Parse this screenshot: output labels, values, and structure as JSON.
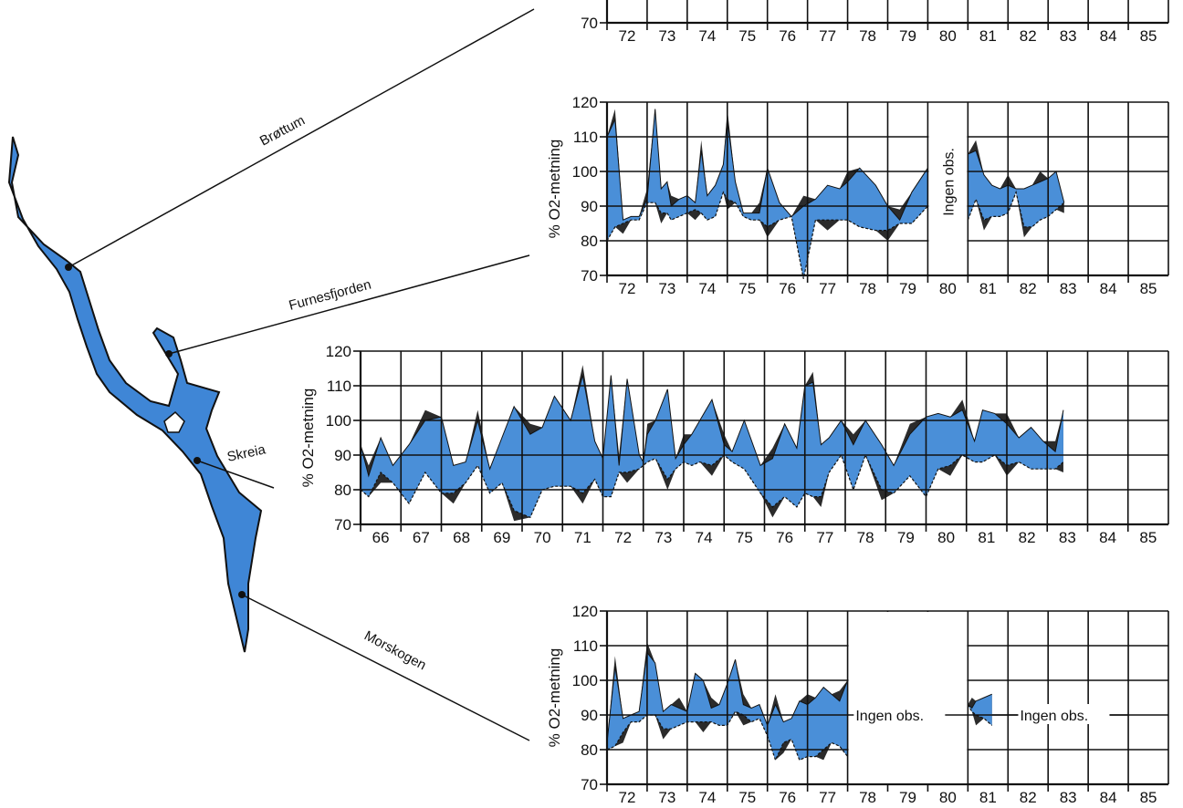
{
  "colors": {
    "band": "#4a8fd8",
    "excess": "#2b2b2b",
    "lake": "#3f86d6",
    "grid": "#111111"
  },
  "map": {
    "places": [
      "Brøttum",
      "Furnesfjorden",
      "Skreia",
      "Morskogen"
    ]
  },
  "chart_data": [
    {
      "station": "top",
      "type": "area",
      "xlabel": "",
      "ylabel": "",
      "xlim": [
        72,
        86
      ],
      "ylim": [
        70,
        120
      ],
      "x_ticks": [
        "72",
        "73",
        "74",
        "75",
        "76",
        "77",
        "78",
        "79",
        "80",
        "81",
        "82",
        "83",
        "84",
        "85"
      ],
      "y_ticks": [
        70
      ],
      "note": ""
    },
    {
      "station": "Brøttum",
      "type": "area",
      "xlabel": "",
      "ylabel": "% O2-metning",
      "xlim": [
        72,
        86
      ],
      "ylim": [
        70,
        120
      ],
      "grid": true,
      "x_ticks": [
        "72",
        "73",
        "74",
        "75",
        "76",
        "77",
        "78",
        "79",
        "80",
        "81",
        "82",
        "83",
        "84",
        "85"
      ],
      "y_ticks": [
        70,
        80,
        90,
        100,
        110,
        120
      ],
      "note": "Ingen obs.",
      "series": [
        {
          "name": "upper",
          "x": [
            72.0,
            72.2,
            72.4,
            72.6,
            72.8,
            73.0,
            73.2,
            73.35,
            73.5,
            73.6,
            73.8,
            74.0,
            74.2,
            74.35,
            74.5,
            74.7,
            74.9,
            75.0,
            75.2,
            75.4,
            75.6,
            75.8,
            76.0,
            76.3,
            76.6,
            76.9,
            77.2,
            77.5,
            77.8,
            78.0,
            78.3,
            78.7,
            79.0,
            79.3,
            79.6,
            80.0
          ],
          "values": [
            110,
            115,
            86,
            87,
            87,
            92,
            118,
            95,
            97,
            90,
            92,
            93,
            91,
            106,
            93,
            96,
            102,
            115,
            97,
            88,
            88,
            88,
            101,
            91,
            87,
            90,
            92,
            96,
            95,
            97,
            101,
            96,
            90,
            86,
            94,
            101
          ]
        },
        {
          "name": "lower",
          "x": [
            72.0,
            72.2,
            72.4,
            72.6,
            72.8,
            73.0,
            73.2,
            73.35,
            73.5,
            73.6,
            73.8,
            74.0,
            74.2,
            74.35,
            74.5,
            74.7,
            74.9,
            75.0,
            75.2,
            75.4,
            75.6,
            75.8,
            76.0,
            76.3,
            76.6,
            76.9,
            77.2,
            77.5,
            77.8,
            78.0,
            78.3,
            78.7,
            79.0,
            79.3,
            79.6,
            80.0
          ],
          "values": [
            80,
            84,
            85,
            86,
            86,
            91,
            91,
            88,
            88,
            86,
            87,
            88,
            89,
            88,
            86,
            87,
            94,
            92,
            91,
            87,
            86,
            86,
            84,
            86,
            87,
            69,
            86,
            86,
            86,
            86,
            84,
            83,
            83,
            85,
            85,
            90
          ]
        },
        {
          "name": "upper",
          "x": [
            81.0,
            81.2,
            81.4,
            81.6,
            81.8,
            82.0,
            82.2,
            82.4,
            82.6,
            82.8,
            83.0,
            83.2,
            83.4
          ],
          "values": [
            105,
            106,
            99,
            96,
            95,
            96,
            95,
            95,
            96,
            97,
            98,
            100,
            91
          ]
        },
        {
          "name": "lower",
          "x": [
            81.0,
            81.2,
            81.4,
            81.6,
            81.8,
            82.0,
            82.2,
            82.4,
            82.6,
            82.8,
            83.0,
            83.2,
            83.4
          ],
          "values": [
            86,
            92,
            86,
            87,
            87,
            88,
            94,
            84,
            84,
            86,
            87,
            89,
            91
          ]
        }
      ]
    },
    {
      "station": "Skreia",
      "type": "area",
      "xlabel": "",
      "ylabel": "% O2-metning",
      "xlim": [
        66,
        86
      ],
      "ylim": [
        70,
        120
      ],
      "grid": true,
      "x_ticks": [
        "66",
        "67",
        "68",
        "69",
        "70",
        "71",
        "72",
        "73",
        "74",
        "75",
        "76",
        "77",
        "78",
        "79",
        "80",
        "81",
        "82",
        "83",
        "84",
        "85"
      ],
      "y_ticks": [
        70,
        80,
        90,
        100,
        110,
        120
      ],
      "note": "",
      "series": [
        {
          "name": "upper",
          "x": [
            66.0,
            66.2,
            66.5,
            66.8,
            67.2,
            67.6,
            68.0,
            68.3,
            68.6,
            68.9,
            69.2,
            69.5,
            69.8,
            70.2,
            70.5,
            70.8,
            71.2,
            71.5,
            71.8,
            72.0,
            72.2,
            72.4,
            72.6,
            72.9,
            73.0,
            73.1,
            73.3,
            73.6,
            73.8,
            74.0,
            74.2,
            74.4,
            74.7,
            75.0,
            75.2,
            75.5,
            75.9,
            76.2,
            76.5,
            76.8,
            77.0,
            77.2,
            77.4,
            77.6,
            77.9,
            78.2,
            78.5,
            78.9,
            79.2,
            79.6,
            80.0,
            80.3,
            80.6,
            80.9,
            81.2,
            81.4,
            81.7,
            82.0,
            82.3,
            82.6,
            82.9,
            83.2,
            83.4
          ],
          "values": [
            93,
            84,
            95,
            87,
            93,
            100,
            101,
            87,
            88,
            100,
            86,
            95,
            104,
            96,
            98,
            107,
            100,
            113,
            94,
            89,
            113,
            87,
            112,
            90,
            88,
            96,
            100,
            109,
            89,
            93,
            96,
            100,
            106,
            93,
            91,
            100,
            87,
            89,
            99,
            92,
            110,
            111,
            93,
            95,
            100,
            93,
            100,
            93,
            87,
            96,
            101,
            102,
            101,
            103,
            94,
            103,
            102,
            99,
            95,
            98,
            94,
            91,
            103
          ]
        },
        {
          "name": "lower",
          "x": [
            66.0,
            66.2,
            66.5,
            66.8,
            67.2,
            67.6,
            68.0,
            68.3,
            68.6,
            68.9,
            69.2,
            69.5,
            69.8,
            70.2,
            70.5,
            70.8,
            71.2,
            71.5,
            71.8,
            72.0,
            72.2,
            72.4,
            72.6,
            72.9,
            73.0,
            73.1,
            73.3,
            73.6,
            73.8,
            74.0,
            74.2,
            74.4,
            74.7,
            75.0,
            75.2,
            75.5,
            75.9,
            76.2,
            76.5,
            76.8,
            77.0,
            77.2,
            77.4,
            77.6,
            77.9,
            78.2,
            78.5,
            78.9,
            79.2,
            79.6,
            80.0,
            80.3,
            80.6,
            80.9,
            81.2,
            81.4,
            81.7,
            82.0,
            82.3,
            82.6,
            82.9,
            83.2,
            83.4
          ],
          "values": [
            80,
            78,
            85,
            82,
            76,
            85,
            79,
            79,
            82,
            87,
            79,
            82,
            74,
            72,
            80,
            81,
            81,
            79,
            83,
            78,
            78,
            85,
            85,
            86,
            87,
            88,
            89,
            83,
            86,
            88,
            87,
            88,
            87,
            90,
            88,
            86,
            79,
            75,
            78,
            75,
            79,
            78,
            78,
            85,
            90,
            80,
            90,
            80,
            79,
            84,
            78,
            86,
            87,
            90,
            88,
            88,
            90,
            87,
            88,
            86,
            86,
            86,
            88
          ]
        }
      ]
    },
    {
      "station": "Morskogen",
      "type": "area",
      "xlabel": "",
      "ylabel": "% O2-metning",
      "xlim": [
        72,
        86
      ],
      "ylim": [
        70,
        120
      ],
      "grid": true,
      "x_ticks": [
        "72",
        "73",
        "74",
        "75",
        "76",
        "77",
        "78",
        "79",
        "80",
        "81",
        "82",
        "83",
        "84",
        "85"
      ],
      "y_ticks": [
        70,
        80,
        90,
        100,
        110,
        120
      ],
      "notes": [
        "Ingen obs.",
        "Ingen obs."
      ],
      "series": [
        {
          "name": "upper",
          "x": [
            72.0,
            72.2,
            72.4,
            72.6,
            72.8,
            73.0,
            73.2,
            73.4,
            73.6,
            73.8,
            74.0,
            74.2,
            74.4,
            74.6,
            74.8,
            75.0,
            75.2,
            75.4,
            75.6,
            75.8,
            76.0,
            76.2,
            76.4,
            76.6,
            76.8,
            77.0,
            77.2,
            77.4,
            77.6,
            77.8,
            78.0
          ],
          "values": [
            82,
            104,
            89,
            90,
            91,
            108,
            105,
            91,
            93,
            92,
            91,
            102,
            100,
            92,
            93,
            99,
            106,
            93,
            92,
            93,
            87,
            93,
            88,
            89,
            94,
            93,
            95,
            98,
            96,
            94,
            100
          ]
        },
        {
          "name": "lower",
          "x": [
            72.0,
            72.2,
            72.4,
            72.6,
            72.8,
            73.0,
            73.2,
            73.4,
            73.6,
            73.8,
            74.0,
            74.2,
            74.4,
            74.6,
            74.8,
            75.0,
            75.2,
            75.4,
            75.6,
            75.8,
            76.0,
            76.2,
            76.4,
            76.6,
            76.8,
            77.0,
            77.2,
            77.4,
            77.6,
            77.8,
            78.0
          ],
          "values": [
            80,
            81,
            85,
            88,
            88,
            90,
            90,
            86,
            86,
            87,
            88,
            88,
            88,
            88,
            87,
            87,
            91,
            90,
            88,
            89,
            84,
            77,
            82,
            83,
            77,
            78,
            78,
            80,
            82,
            81,
            78
          ]
        },
        {
          "name": "upper",
          "x": [
            81.0,
            81.1,
            81.2,
            81.4,
            81.6
          ],
          "values": [
            93,
            92,
            94,
            95,
            96
          ]
        },
        {
          "name": "lower",
          "x": [
            81.0,
            81.1,
            81.2,
            81.4,
            81.6
          ],
          "values": [
            93,
            91,
            90,
            89,
            87
          ]
        }
      ]
    }
  ]
}
